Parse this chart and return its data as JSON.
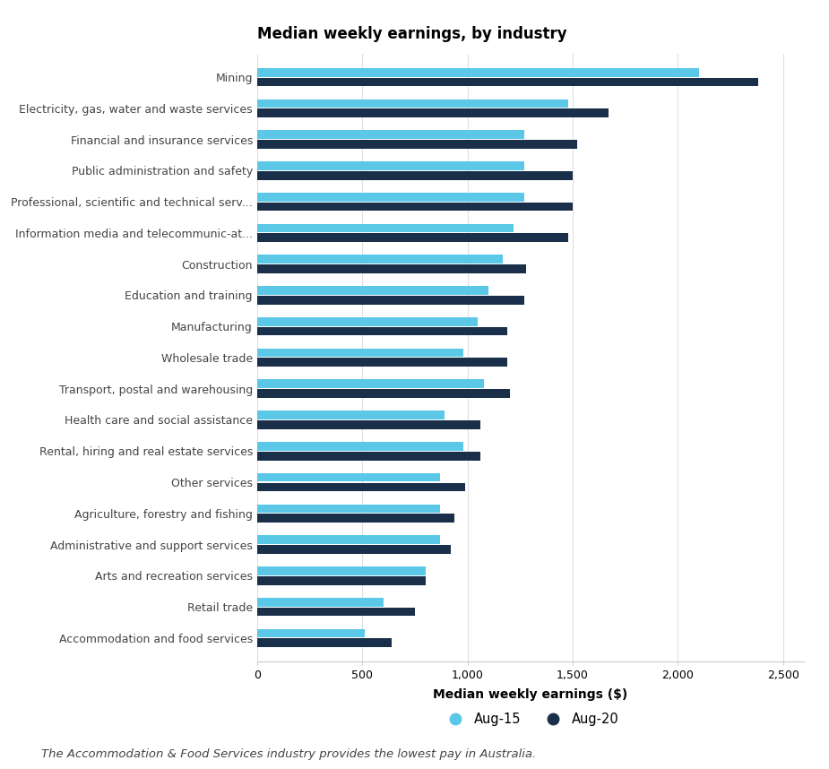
{
  "title": "Median weekly earnings, by industry",
  "xlabel": "Median weekly earnings ($)",
  "footnote": "The Accommodation & Food Services industry provides the lowest pay in Australia.",
  "legend_labels": [
    "Aug-15",
    "Aug-20"
  ],
  "colors": [
    "#5bc8e8",
    "#1a2f4a"
  ],
  "categories": [
    "Mining",
    "Electricity, gas, water and waste services",
    "Financial and insurance services",
    "Public administration and safety",
    "Professional, scientific and technical serv...",
    "Information media and telecommunic-at...",
    "Construction",
    "Education and training",
    "Manufacturing",
    "Wholesale trade",
    "Transport, postal and warehousing",
    "Health care and social assistance",
    "Rental, hiring and real estate services",
    "Other services",
    "Agriculture, forestry and fishing",
    "Administrative and support services",
    "Arts and recreation services",
    "Retail trade",
    "Accommodation and food services"
  ],
  "aug15": [
    2100,
    1480,
    1270,
    1270,
    1270,
    1220,
    1170,
    1100,
    1050,
    980,
    1080,
    890,
    980,
    870,
    870,
    870,
    800,
    600,
    510
  ],
  "aug20": [
    2380,
    1670,
    1520,
    1500,
    1500,
    1480,
    1280,
    1270,
    1190,
    1190,
    1200,
    1060,
    1060,
    990,
    940,
    920,
    800,
    750,
    640
  ],
  "xlim": [
    0,
    2600
  ],
  "xticks": [
    0,
    500,
    1000,
    1500,
    2000,
    2500
  ],
  "background_color": "#ffffff",
  "grid_color": "#e0e0e0",
  "title_fontsize": 12,
  "xlabel_fontsize": 10,
  "ylabel_fontsize": 9,
  "tick_fontsize": 9,
  "footnote_fontsize": 9.5,
  "bar_height": 0.28,
  "bar_gap": 0.03
}
